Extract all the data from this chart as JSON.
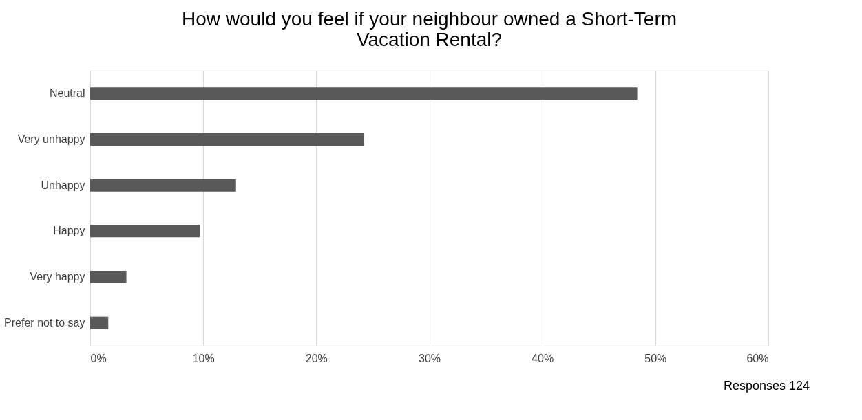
{
  "chart_data": {
    "type": "bar",
    "orientation": "horizontal",
    "title": "How would you feel if your neighbour owned a Short-Term Vacation Rental?",
    "categories": [
      "Neutral",
      "Very unhappy",
      "Unhappy",
      "Happy",
      "Very happy",
      "Prefer not to say"
    ],
    "values": [
      48.4,
      24.2,
      12.9,
      9.7,
      3.2,
      1.6
    ],
    "color": "#595959",
    "xlim": [
      0,
      60
    ],
    "xticks": [
      {
        "value": 0,
        "label": "0%"
      },
      {
        "value": 10,
        "label": "10%"
      },
      {
        "value": 20,
        "label": "20%"
      },
      {
        "value": 30,
        "label": "30%"
      },
      {
        "value": 40,
        "label": "40%"
      },
      {
        "value": 50,
        "label": "50%"
      },
      {
        "value": 60,
        "label": "60%"
      }
    ],
    "grid": "x",
    "annotations": [
      "Responses 124"
    ]
  }
}
